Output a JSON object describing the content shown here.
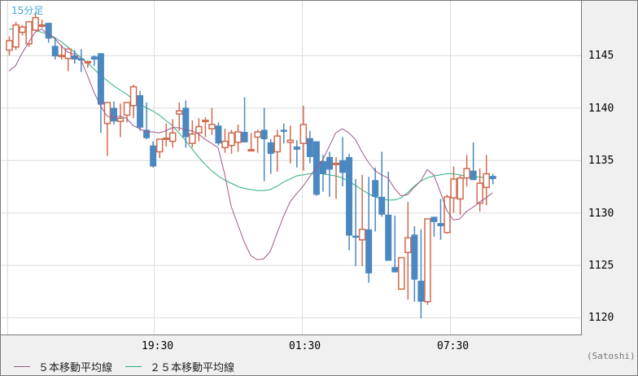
{
  "title": "15分足",
  "unit_label": "(Satoshi)",
  "colors": {
    "up": "#d06a4e",
    "down": "#4a88bf",
    "ma5": "#a0578c",
    "ma25": "#2ab07a",
    "grid": "#dcdcdc",
    "title": "#3fa9d6"
  },
  "legend": [
    {
      "label": "５本移動平均線",
      "color": "#a0578c"
    },
    {
      "label": "２５本移動平均線",
      "color": "#2ab07a"
    }
  ],
  "y_axis": {
    "ticks": [
      "1145",
      "1140",
      "1135",
      "1130",
      "1125",
      "1120"
    ]
  },
  "x_axis": {
    "ticks": [
      "19:30",
      "01:30",
      "07:30"
    ]
  },
  "chart_data": {
    "type": "candlestick",
    "title": "15分足",
    "xlabel": "",
    "ylabel": "(Satoshi)",
    "ylim": [
      1118.5,
      1150
    ],
    "y_ticks": [
      1120,
      1125,
      1130,
      1135,
      1140,
      1145
    ],
    "x_ticks": [
      {
        "label": "19:30",
        "index": 23
      },
      {
        "label": "01:30",
        "index": 47
      },
      {
        "label": "07:30",
        "index": 71
      }
    ],
    "grid": true,
    "legend_position": "bottom-left",
    "candles": [
      [
        1145.5,
        1146.8,
        1145.0,
        1146.4
      ],
      [
        1145.8,
        1148.2,
        1145.5,
        1147.9
      ],
      [
        1147.2,
        1147.9,
        1146.9,
        1147.7
      ],
      [
        1146.1,
        1147.7,
        1145.8,
        1148.2
      ],
      [
        1147.4,
        1149.0,
        1147.3,
        1148.6
      ],
      [
        1147.9,
        1148.4,
        1147.6,
        1147.9
      ],
      [
        1148.1,
        1148.1,
        1146.2,
        1146.6
      ],
      [
        1145.9,
        1146.7,
        1144.6,
        1144.9
      ],
      [
        1145.0,
        1146.0,
        1144.6,
        1145.0
      ],
      [
        1144.7,
        1145.6,
        1143.5,
        1145.6
      ],
      [
        1145.0,
        1145.5,
        1144.2,
        1144.6
      ],
      [
        1144.7,
        1145.6,
        1143.4,
        1144.5
      ],
      [
        1144.4,
        1144.5,
        1143.8,
        1144.4
      ],
      [
        1144.9,
        1145.0,
        1144.0,
        1144.6
      ],
      [
        1145.2,
        1145.2,
        1137.6,
        1140.3
      ],
      [
        1138.5,
        1140.5,
        1135.4,
        1140.5
      ],
      [
        1140.0,
        1140.6,
        1138.4,
        1138.7
      ],
      [
        1138.7,
        1140.4,
        1137.2,
        1139.0
      ],
      [
        1139.3,
        1140.5,
        1138.6,
        1140.5
      ],
      [
        1140.2,
        1142.2,
        1139.0,
        1142.0
      ],
      [
        1141.2,
        1141.6,
        1137.8,
        1138.1
      ],
      [
        1137.9,
        1140.5,
        1137.0,
        1137.1
      ],
      [
        1136.4,
        1136.8,
        1134.3,
        1134.4
      ],
      [
        1135.8,
        1137.0,
        1135.2,
        1137.0
      ],
      [
        1137.1,
        1138.5,
        1136.3,
        1137.1
      ],
      [
        1136.8,
        1138.9,
        1136.2,
        1137.6
      ],
      [
        1139.4,
        1140.5,
        1137.8,
        1139.7
      ],
      [
        1140.0,
        1140.7,
        1136.2,
        1137.2
      ],
      [
        1136.6,
        1138.8,
        1136.2,
        1137.5
      ],
      [
        1137.6,
        1139.0,
        1136.8,
        1138.2
      ],
      [
        1138.8,
        1139.1,
        1137.2,
        1138.8
      ],
      [
        1138.0,
        1140.0,
        1137.4,
        1138.4
      ],
      [
        1138.3,
        1138.6,
        1136.4,
        1136.6
      ],
      [
        1136.2,
        1138.0,
        1135.7,
        1136.8
      ],
      [
        1136.4,
        1137.9,
        1135.6,
        1137.6
      ],
      [
        1136.7,
        1138.4,
        1135.8,
        1137.7
      ],
      [
        1137.7,
        1141.0,
        1136.9,
        1136.7
      ],
      [
        1136.0,
        1137.6,
        1136.4,
        1136.0
      ],
      [
        1137.2,
        1137.9,
        1135.7,
        1137.7
      ],
      [
        1137.9,
        1140.0,
        1133.0,
        1137.0
      ],
      [
        1136.7,
        1137.0,
        1133.7,
        1135.6
      ],
      [
        1135.8,
        1137.9,
        1133.9,
        1137.3
      ],
      [
        1137.9,
        1138.5,
        1136.6,
        1137.7
      ],
      [
        1136.7,
        1138.3,
        1134.7,
        1136.9
      ],
      [
        1136.3,
        1136.9,
        1134.3,
        1136.0
      ],
      [
        1136.6,
        1140.2,
        1134.0,
        1138.4
      ],
      [
        1137.1,
        1137.8,
        1134.7,
        1135.3
      ],
      [
        1136.8,
        1136.8,
        1131.6,
        1131.7
      ],
      [
        1134.9,
        1135.5,
        1132.0,
        1133.7
      ],
      [
        1135.3,
        1135.8,
        1131.5,
        1134.1
      ],
      [
        1134.6,
        1135.3,
        1131.3,
        1134.7
      ],
      [
        1135.0,
        1137.2,
        1132.5,
        1133.8
      ],
      [
        1135.3,
        1135.6,
        1126.4,
        1127.8
      ],
      [
        1127.8,
        1133.2,
        1124.9,
        1127.6
      ],
      [
        1127.4,
        1133.6,
        1124.9,
        1128.4
      ],
      [
        1128.4,
        1133.4,
        1123.3,
        1124.2
      ],
      [
        1133.1,
        1134.3,
        1128.2,
        1131.5
      ],
      [
        1131.5,
        1135.8,
        1129.6,
        1129.8
      ],
      [
        1129.8,
        1133.9,
        1127.6,
        1125.4
      ],
      [
        1124.8,
        1129.7,
        1125.5,
        1124.3
      ],
      [
        1122.7,
        1125.1,
        1122.7,
        1125.7
      ],
      [
        1126.2,
        1131.0,
        1121.7,
        1127.6
      ],
      [
        1127.9,
        1128.7,
        1121.5,
        1123.6
      ],
      [
        1123.5,
        1128.4,
        1119.9,
        1121.5
      ],
      [
        1121.5,
        1129.4,
        1121.2,
        1129.4
      ],
      [
        1129.6,
        1129.4,
        1127.7,
        1129.1
      ],
      [
        1129.0,
        1131.3,
        1127.4,
        1128.7
      ],
      [
        1128.1,
        1131.7,
        1128.0,
        1131.5
      ],
      [
        1131.4,
        1134.4,
        1130.0,
        1133.2
      ],
      [
        1131.3,
        1133.6,
        1129.8,
        1133.3
      ],
      [
        1133.3,
        1135.5,
        1132.5,
        1134.2
      ],
      [
        1134.0,
        1136.7,
        1133.7,
        1133.1
      ],
      [
        1130.9,
        1134.2,
        1130.1,
        1132.8
      ],
      [
        1132.4,
        1135.5,
        1130.7,
        1133.7
      ],
      [
        1133.5,
        1133.7,
        1132.7,
        1133.2
      ]
    ],
    "series": [
      {
        "name": "５本移動平均線",
        "values": [
          1143.5,
          1144.0,
          1145.2,
          1146.2,
          1147.2,
          1147.5,
          1147.0,
          1146.6,
          1145.9,
          1145.3,
          1145.1,
          1144.6,
          1143.1,
          1141.5,
          1140.2,
          1139.2,
          1139.1,
          1139.2,
          1139.0,
          1138.3,
          1138.0,
          1137.7,
          1137.7,
          1137.6,
          1137.8,
          1138.1,
          1138.1,
          1137.9,
          1137.8,
          1137.5,
          1137.0,
          1136.6,
          1136.2,
          1133.7,
          1130.6,
          1128.9,
          1127.2,
          1125.9,
          1125.5,
          1125.6,
          1126.3,
          1128.0,
          1129.6,
          1131.0,
          1131.8,
          1132.5,
          1133.4,
          1134.3,
          1135.0,
          1136.3,
          1137.6,
          1138.0,
          1137.6,
          1137.0,
          1135.8,
          1134.8,
          1134.0,
          1133.6,
          1133.3,
          1132.3,
          1131.6,
          1131.7,
          1132.4,
          1133.0,
          1134.1,
          1133.6,
          1132.0,
          1130.2,
          1129.3,
          1129.4,
          1130.1,
          1130.5,
          1131.0,
          1131.4,
          1131.9
        ]
      },
      {
        "name": "２５本移動平均線",
        "values": [
          1147.5,
          1147.5,
          1147.5,
          1147.5,
          1147.4,
          1147.2,
          1147.0,
          1146.7,
          1146.3,
          1145.8,
          1145.3,
          1144.8,
          1144.3,
          1143.7,
          1143.1,
          1142.6,
          1142.1,
          1141.7,
          1141.3,
          1140.8,
          1140.4,
          1140.0,
          1139.7,
          1139.3,
          1138.8,
          1138.3,
          1137.6,
          1136.9,
          1136.1,
          1135.3,
          1134.6,
          1134.0,
          1133.5,
          1133.1,
          1132.8,
          1132.5,
          1132.3,
          1132.2,
          1132.1,
          1132.1,
          1132.2,
          1132.5,
          1132.9,
          1133.2,
          1133.5,
          1133.6,
          1133.7,
          1133.7,
          1133.7,
          1133.6,
          1133.5,
          1133.3,
          1133.0,
          1132.6,
          1132.2,
          1131.8,
          1131.5,
          1131.3,
          1131.2,
          1131.2
        ]
      }
    ]
  }
}
